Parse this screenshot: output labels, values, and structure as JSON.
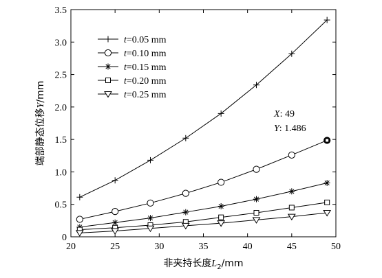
{
  "chart_data": {
    "type": "line",
    "xlabel": "非夹持长度",
    "xlabel_var": "L",
    "xlabel_sub": "2",
    "xlabel_unit": "/mm",
    "ylabel": "端部静态位移",
    "ylabel_var": "Y",
    "ylabel_unit": "/mm",
    "xlim": [
      20,
      50
    ],
    "ylim": [
      0,
      3.5
    ],
    "x_ticks": [
      "20",
      "25",
      "30",
      "35",
      "40",
      "45",
      "50"
    ],
    "y_ticks": [
      "0",
      "0.5",
      "1.0",
      "1.5",
      "2.0",
      "2.5",
      "3.0",
      "3.5"
    ],
    "x": [
      21,
      25,
      29,
      33,
      37,
      41,
      45,
      49
    ],
    "series": [
      {
        "name": "t=0.05 mm",
        "var": "t",
        "rest": "=0.05 mm",
        "marker": "plus",
        "values": [
          0.61,
          0.87,
          1.18,
          1.52,
          1.9,
          2.34,
          2.82,
          3.34
        ]
      },
      {
        "name": "t=0.10 mm",
        "var": "t",
        "rest": "=0.10 mm",
        "marker": "circle",
        "values": [
          0.27,
          0.39,
          0.52,
          0.67,
          0.84,
          1.04,
          1.26,
          1.486
        ]
      },
      {
        "name": "t=0.15 mm",
        "var": "t",
        "rest": "=0.15 mm",
        "marker": "star",
        "values": [
          0.15,
          0.22,
          0.29,
          0.38,
          0.47,
          0.58,
          0.7,
          0.83
        ]
      },
      {
        "name": "t=0.20 mm",
        "var": "t",
        "rest": "=0.20 mm",
        "marker": "square",
        "values": [
          0.11,
          0.14,
          0.18,
          0.23,
          0.3,
          0.37,
          0.45,
          0.53
        ]
      },
      {
        "name": "t=0.25 mm",
        "var": "t",
        "rest": "=0.25 mm",
        "marker": "triangle",
        "values": [
          0.06,
          0.09,
          0.13,
          0.17,
          0.21,
          0.26,
          0.31,
          0.37
        ]
      }
    ],
    "annotation": {
      "x_label": "X",
      "x_value": ": 49",
      "y_label": "Y",
      "y_value": ": 1.486",
      "series_index": 1,
      "point_index": 7
    },
    "legend_position": "top-left",
    "grid": false
  }
}
